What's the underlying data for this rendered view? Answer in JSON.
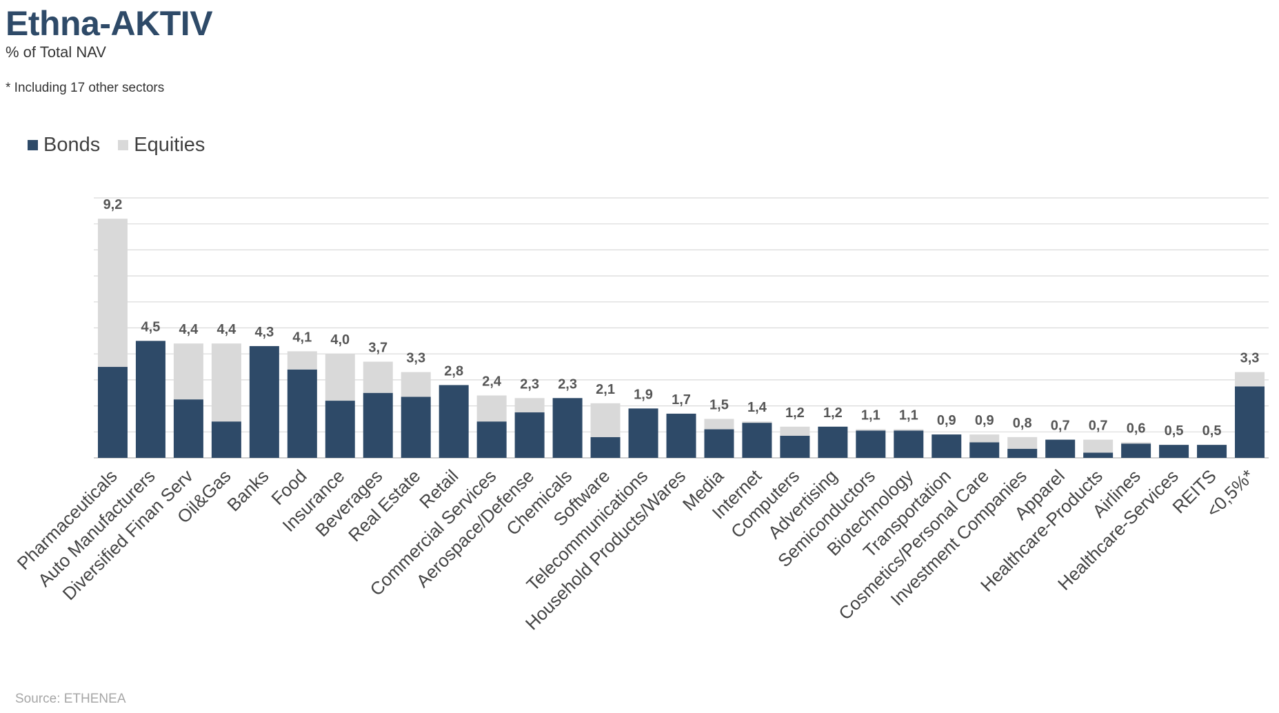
{
  "header": {
    "title": "Ethna-AKTIV",
    "subtitle": "% of Total NAV",
    "footnote": "* Including 17 other sectors"
  },
  "footer": {
    "source": "Source: ETHENEA"
  },
  "colors": {
    "bonds": "#2e4a68",
    "equities": "#d9d9d9",
    "grid": "#d9d9d9"
  },
  "chart_data": {
    "type": "bar",
    "stacked": true,
    "title": "",
    "xlabel": "",
    "ylabel": "",
    "ylim": [
      0,
      10
    ],
    "grid": true,
    "legend_position": "top-left",
    "categories": [
      "Pharmaceuticals",
      "Auto Manufacturers",
      "Diversified Finan Serv",
      "Oil&Gas",
      "Banks",
      "Food",
      "Insurance",
      "Beverages",
      "Real Estate",
      "Retail",
      "Commercial Services",
      "Aerospace/Defense",
      "Chemicals",
      "Software",
      "Telecommunications",
      "Household Products/Wares",
      "Media",
      "Internet",
      "Computers",
      "Advertising",
      "Semiconductors",
      "Biotechnology",
      "Transportation",
      "Cosmetics/Personal Care",
      "Investment Companies",
      "Apparel",
      "Healthcare-Products",
      "Airlines",
      "Healthcare-Services",
      "REITS",
      "<0,5%*"
    ],
    "series": [
      {
        "name": "Bonds",
        "values": [
          3.5,
          4.5,
          2.25,
          1.4,
          4.3,
          3.4,
          2.2,
          2.5,
          2.35,
          2.8,
          1.4,
          1.75,
          2.3,
          0.8,
          1.9,
          1.7,
          1.1,
          1.35,
          0.85,
          1.2,
          1.05,
          1.05,
          0.9,
          0.6,
          0.35,
          0.7,
          0.2,
          0.55,
          0.5,
          0.5,
          2.75
        ]
      },
      {
        "name": "Equities",
        "values": [
          5.7,
          0.0,
          2.15,
          3.0,
          0.0,
          0.7,
          1.8,
          1.2,
          0.95,
          0.0,
          1.0,
          0.55,
          0.0,
          1.3,
          0.0,
          0.0,
          0.4,
          0.05,
          0.35,
          0.0,
          0.05,
          0.05,
          0.0,
          0.3,
          0.45,
          0.0,
          0.5,
          0.05,
          0.0,
          0.0,
          0.55
        ]
      }
    ],
    "totals": [
      "9,2",
      "4,5",
      "4,4",
      "4,4",
      "4,3",
      "4,1",
      "4,0",
      "3,7",
      "3,3",
      "2,8",
      "2,4",
      "2,3",
      "2,3",
      "2,1",
      "1,9",
      "1,7",
      "1,5",
      "1,4",
      "1,2",
      "1,2",
      "1,1",
      "1,1",
      "0,9",
      "0,9",
      "0,8",
      "0,7",
      "0,7",
      "0,6",
      "0,5",
      "0,5",
      "3,3"
    ]
  }
}
